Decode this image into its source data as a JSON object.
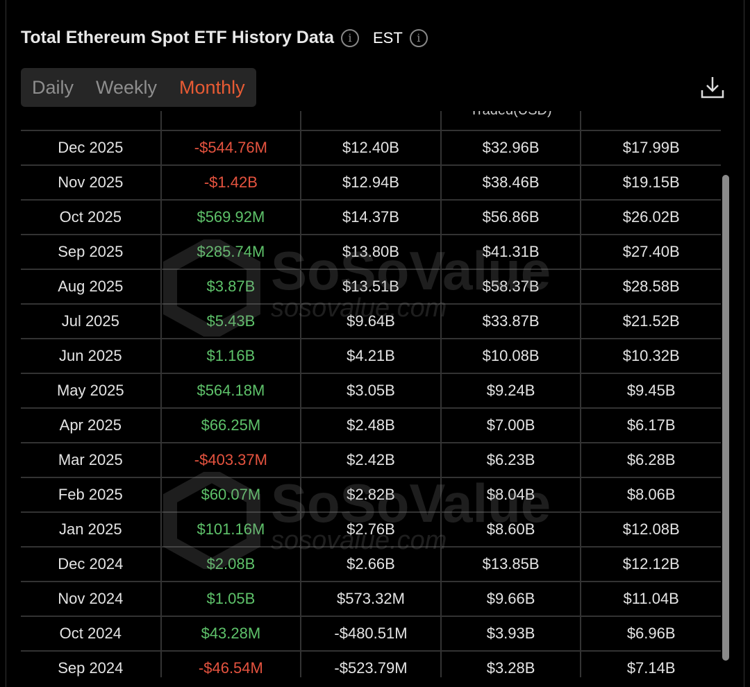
{
  "header": {
    "title": "Total Ethereum Spot ETF History Data",
    "timezone": "EST"
  },
  "tabs": [
    {
      "label": "Daily",
      "active": false
    },
    {
      "label": "Weekly",
      "active": false
    },
    {
      "label": "Monthly",
      "active": true
    }
  ],
  "colors": {
    "accent": "#e85b34",
    "positive": "#5ec26a",
    "negative": "#e5533f"
  },
  "table": {
    "columns": [
      "",
      "",
      "",
      "Traded(USD)",
      ""
    ],
    "rows": [
      [
        "Dec 2025",
        "-$544.76M",
        "$12.40B",
        "$32.96B",
        "$17.99B"
      ],
      [
        "Nov 2025",
        "-$1.42B",
        "$12.94B",
        "$38.46B",
        "$19.15B"
      ],
      [
        "Oct 2025",
        "$569.92M",
        "$14.37B",
        "$56.86B",
        "$26.02B"
      ],
      [
        "Sep 2025",
        "$285.74M",
        "$13.80B",
        "$41.31B",
        "$27.40B"
      ],
      [
        "Aug 2025",
        "$3.87B",
        "$13.51B",
        "$58.37B",
        "$28.58B"
      ],
      [
        "Jul 2025",
        "$5.43B",
        "$9.64B",
        "$33.87B",
        "$21.52B"
      ],
      [
        "Jun 2025",
        "$1.16B",
        "$4.21B",
        "$10.08B",
        "$10.32B"
      ],
      [
        "May 2025",
        "$564.18M",
        "$3.05B",
        "$9.24B",
        "$9.45B"
      ],
      [
        "Apr 2025",
        "$66.25M",
        "$2.48B",
        "$7.00B",
        "$6.17B"
      ],
      [
        "Mar 2025",
        "-$403.37M",
        "$2.42B",
        "$6.23B",
        "$6.28B"
      ],
      [
        "Feb 2025",
        "$60.07M",
        "$2.82B",
        "$8.04B",
        "$8.06B"
      ],
      [
        "Jan 2025",
        "$101.16M",
        "$2.76B",
        "$8.60B",
        "$12.08B"
      ],
      [
        "Dec 2024",
        "$2.08B",
        "$2.66B",
        "$13.85B",
        "$12.12B"
      ],
      [
        "Nov 2024",
        "$1.05B",
        "$573.32M",
        "$9.66B",
        "$11.04B"
      ],
      [
        "Oct 2024",
        "$43.28M",
        "-$480.51M",
        "$3.93B",
        "$6.96B"
      ],
      [
        "Sep 2024",
        "-$46.54M",
        "-$523.79M",
        "$3.28B",
        "$7.14B"
      ]
    ]
  },
  "watermark": {
    "brand": "SoSoValue",
    "site": "sosovalue.com"
  }
}
